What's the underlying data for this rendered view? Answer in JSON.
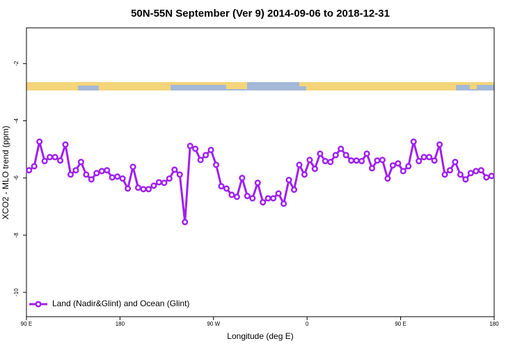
{
  "chart_data": {
    "type": "line",
    "title": "50N-55N September (Ver 9)   2014-09-06 to 2018-12-31",
    "x_label": "Longitude (deg E)",
    "y_label": "XCO2 - MLO trend (ppm)",
    "x": [
      92.5,
      97.5,
      102.5,
      107.5,
      112.5,
      117.5,
      122.5,
      127.5,
      132.5,
      137.5,
      142.5,
      147.5,
      152.5,
      157.5,
      162.5,
      167.5,
      172.5,
      177.5,
      182.5,
      187.5,
      192.5,
      197.5,
      202.5,
      207.5,
      212.5,
      217.5,
      222.5,
      227.5,
      232.5,
      237.5,
      242.5,
      247.5,
      252.5,
      257.5,
      262.5,
      267.5,
      272.5,
      277.5,
      282.5,
      287.5,
      292.5,
      297.5,
      302.5,
      307.5,
      312.5,
      317.5,
      322.5,
      327.5,
      332.5,
      337.5,
      342.5,
      347.5,
      352.5,
      357.5,
      362.5,
      367.5,
      372.5,
      377.5,
      382.5,
      387.5,
      392.5,
      397.5,
      402.5,
      407.5,
      412.5,
      417.5,
      422.5,
      427.5,
      432.5,
      437.5,
      442.5,
      447.5,
      452.5,
      457.5,
      462.5,
      467.5,
      472.5,
      477.5,
      482.5,
      487.5,
      492.5,
      497.5,
      502.5,
      507.5,
      512.5,
      517.5,
      522.5,
      527.5,
      532.5,
      537.5
    ],
    "series": [
      {
        "name": "Land (Nadir&Glint) and Ocean (Glint)",
        "color": "#a020f0",
        "values": [
          -5.73,
          -5.59,
          -4.73,
          -5.41,
          -5.27,
          -5.27,
          -5.39,
          -4.83,
          -5.88,
          -5.73,
          -5.44,
          -5.88,
          -6.05,
          -5.83,
          -5.76,
          -5.73,
          -5.98,
          -5.95,
          -6.02,
          -6.37,
          -5.61,
          -6.34,
          -6.39,
          -6.39,
          -6.27,
          -6.15,
          -6.17,
          -6.02,
          -5.71,
          -5.88,
          -7.54,
          -4.88,
          -4.98,
          -5.37,
          -5.2,
          -5.02,
          -5.54,
          -6.29,
          -6.37,
          -6.59,
          -6.66,
          -6.0,
          -6.63,
          -6.71,
          -6.17,
          -6.85,
          -6.71,
          -6.71,
          -6.54,
          -6.9,
          -6.07,
          -6.41,
          -5.54,
          -5.88,
          -5.37,
          -5.68,
          -5.15,
          -5.41,
          -5.44,
          -5.2,
          -4.98,
          -5.2,
          -5.39,
          -5.39,
          -5.41,
          -5.15,
          -5.66,
          -5.39,
          -5.37,
          -6.02,
          -5.56,
          -5.49,
          -5.76,
          -5.59,
          -4.73,
          -5.41,
          -5.27,
          -5.27,
          -5.39,
          -4.83,
          -5.88,
          -5.73,
          -5.44,
          -5.88,
          -6.05,
          -5.83,
          -5.76,
          -5.73,
          -5.98,
          -5.93
        ]
      }
    ],
    "xlim": [
      90,
      540
    ],
    "xticks": [
      {
        "value": 90,
        "label": "90 E"
      },
      180,
      {
        "value": 270,
        "label": "90 W"
      },
      {
        "value": 360,
        "label": "0"
      },
      {
        "value": 450,
        "label": "90 E"
      },
      {
        "value": 540,
        "label": "180"
      }
    ],
    "ylim": [
      -10.85,
      -0.75
    ],
    "yticks": [
      -2,
      -4,
      -6,
      -8,
      -10
    ],
    "grid": false,
    "legend": "bottom-left"
  }
}
